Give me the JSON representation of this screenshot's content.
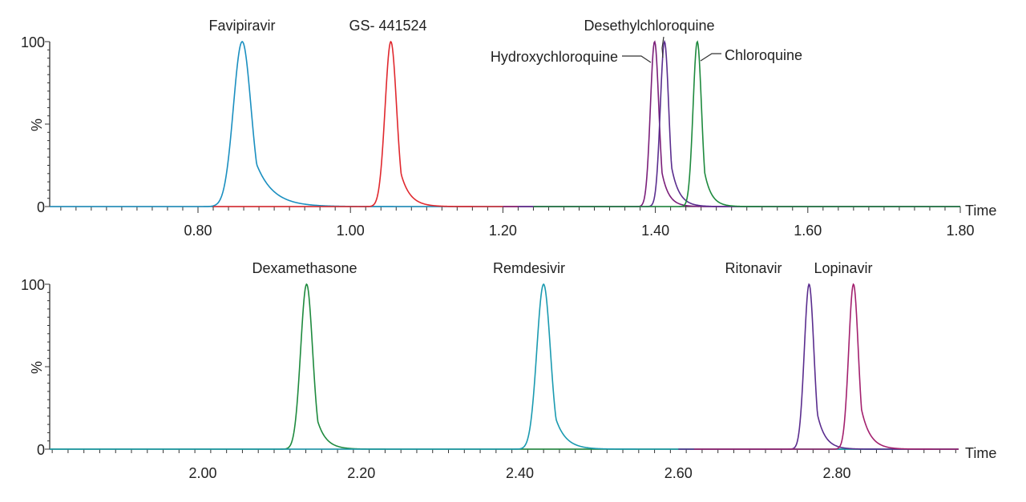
{
  "chart_data": [
    {
      "type": "line",
      "panel": "top",
      "xlabel": "Time",
      "ylabel": "%",
      "xlim": [
        0.605,
        1.8
      ],
      "ylim": [
        0,
        100
      ],
      "x_ticks": [
        "0.80",
        "1.00",
        "1.20",
        "1.40",
        "1.60",
        "1.80"
      ],
      "y_ticks": [
        "0",
        "100"
      ],
      "series": [
        {
          "name": "Favipiravir",
          "color": "#1a8fc0",
          "rt": 0.858,
          "sigma": 0.0115,
          "tail": 0.022,
          "height": 100,
          "range": [
            0.605,
            1.2
          ]
        },
        {
          "name": "GS-441524",
          "display": "GS‑ 441524",
          "color": "#e0282e",
          "rt": 1.053,
          "sigma": 0.0075,
          "tail": 0.012,
          "height": 100,
          "range": [
            0.82,
            1.22
          ]
        },
        {
          "name": "Hydroxychloroquine",
          "color": "#7b1f7a",
          "rt": 1.399,
          "sigma": 0.0055,
          "tail": 0.009,
          "height": 100,
          "range": [
            1.2,
            1.8
          ]
        },
        {
          "name": "Desethylchloroquine",
          "color": "#5a2d8e",
          "rt": 1.412,
          "sigma": 0.0055,
          "tail": 0.01,
          "height": 100,
          "range": [
            1.22,
            1.8
          ]
        },
        {
          "name": "Chloroquine",
          "color": "#1e8a3e",
          "rt": 1.455,
          "sigma": 0.0055,
          "tail": 0.009,
          "height": 100,
          "range": [
            1.24,
            1.8
          ]
        }
      ]
    },
    {
      "type": "line",
      "panel": "bottom",
      "xlabel": "Time",
      "ylabel": "%",
      "xlim": [
        1.795,
        2.99
      ],
      "ylim": [
        0,
        100
      ],
      "x_ticks": [
        "2.00",
        "2.20",
        "2.40",
        "2.60",
        "2.80"
      ],
      "y_ticks": [
        "0",
        "100"
      ],
      "series": [
        {
          "name": "Dexamethasone",
          "color": "#1e8a3e",
          "rt": 2.131,
          "sigma": 0.0075,
          "tail": 0.011,
          "height": 100,
          "range": [
            1.8,
            2.99
          ]
        },
        {
          "name": "Remdesivir",
          "color": "#1a9ab0",
          "rt": 2.43,
          "sigma": 0.0085,
          "tail": 0.013,
          "height": 100,
          "range": [
            1.8,
            2.99
          ]
        },
        {
          "name": "Ritonavir",
          "color": "#5a2d8e",
          "rt": 2.765,
          "sigma": 0.006,
          "tail": 0.01,
          "height": 100,
          "range": [
            2.6,
            2.99
          ]
        },
        {
          "name": "Lopinavir",
          "color": "#a3206e",
          "rt": 2.821,
          "sigma": 0.006,
          "tail": 0.011,
          "height": 100,
          "range": [
            2.62,
            2.99
          ]
        }
      ]
    }
  ]
}
